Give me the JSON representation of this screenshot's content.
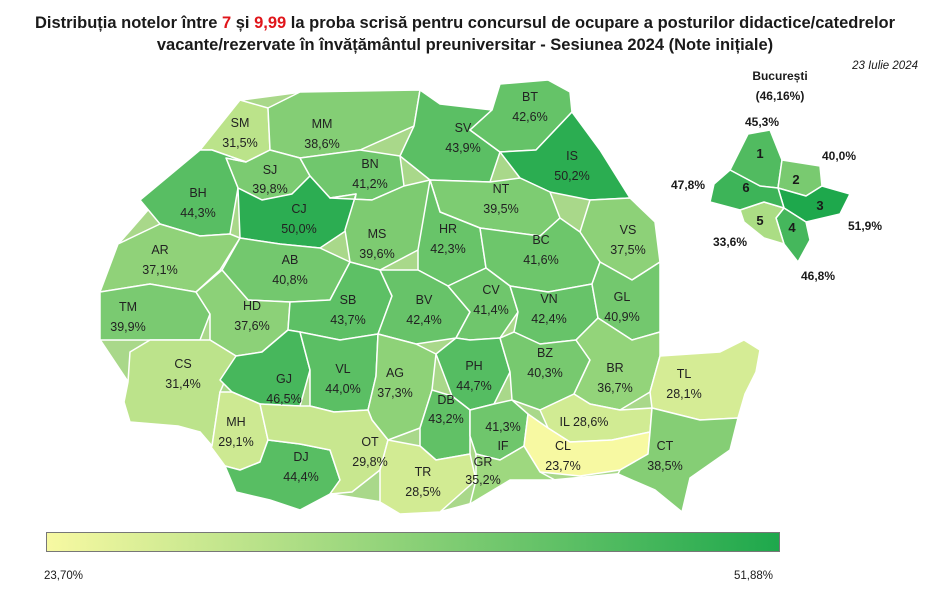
{
  "title": {
    "part1": "Distribuția notelor între ",
    "num1": "7",
    "part2": " și ",
    "num2": "9,99",
    "part3": " la proba scrisă pentru concursul de ocupare a posturilor didactice/catedrelor",
    "line2": "vacante/rezervate în învățământul preuniversitar - Sesiunea 2024 (Note inițiale)"
  },
  "date": "23 Iulie 2024",
  "colors": {
    "low": "#f7f9a2",
    "high": "#1ea84c",
    "border": "#ffffff"
  },
  "scale": {
    "min": 23.7,
    "max": 51.88,
    "min_label": "23,70%",
    "max_label": "51,88%"
  },
  "counties": [
    {
      "code": "SM",
      "value": 31.5,
      "label": "31,5%"
    },
    {
      "code": "MM",
      "value": 38.6,
      "label": "38,6%"
    },
    {
      "code": "SV",
      "value": 43.9,
      "label": "43,9%"
    },
    {
      "code": "BT",
      "value": 42.6,
      "label": "42,6%"
    },
    {
      "code": "SJ",
      "value": 39.8,
      "label": "39,8%"
    },
    {
      "code": "BN",
      "value": 41.2,
      "label": "41,2%"
    },
    {
      "code": "IS",
      "value": 50.2,
      "label": "50,2%"
    },
    {
      "code": "BH",
      "value": 44.3,
      "label": "44,3%"
    },
    {
      "code": "CJ",
      "value": 50.0,
      "label": "50,0%"
    },
    {
      "code": "NT",
      "value": 39.5,
      "label": "39,5%"
    },
    {
      "code": "MS",
      "value": 39.6,
      "label": "39,6%"
    },
    {
      "code": "HR",
      "value": 42.3,
      "label": "42,3%"
    },
    {
      "code": "VS",
      "value": 37.5,
      "label": "37,5%"
    },
    {
      "code": "AR",
      "value": 37.1,
      "label": "37,1%"
    },
    {
      "code": "AB",
      "value": 40.8,
      "label": "40,8%"
    },
    {
      "code": "BC",
      "value": 41.6,
      "label": "41,6%"
    },
    {
      "code": "TM",
      "value": 39.9,
      "label": "39,9%"
    },
    {
      "code": "HD",
      "value": 37.6,
      "label": "37,6%"
    },
    {
      "code": "SB",
      "value": 43.7,
      "label": "43,7%"
    },
    {
      "code": "BV",
      "value": 42.4,
      "label": "42,4%"
    },
    {
      "code": "CV",
      "value": 41.4,
      "label": "41,4%"
    },
    {
      "code": "VN",
      "value": 42.4,
      "label": "42,4%"
    },
    {
      "code": "GL",
      "value": 40.9,
      "label": "40,9%"
    },
    {
      "code": "CS",
      "value": 31.4,
      "label": "31,4%"
    },
    {
      "code": "GJ",
      "value": 46.5,
      "label": "46,5%"
    },
    {
      "code": "VL",
      "value": 44.0,
      "label": "44,0%"
    },
    {
      "code": "AG",
      "value": 37.3,
      "label": "37,3%"
    },
    {
      "code": "PH",
      "value": 44.7,
      "label": "44,7%"
    },
    {
      "code": "BZ",
      "value": 40.3,
      "label": "40,3%"
    },
    {
      "code": "BR",
      "value": 36.7,
      "label": "36,7%"
    },
    {
      "code": "TL",
      "value": 28.1,
      "label": "28,1%"
    },
    {
      "code": "MH",
      "value": 29.1,
      "label": "29,1%"
    },
    {
      "code": "DB",
      "value": 43.2,
      "label": "43,2%"
    },
    {
      "code": "IL",
      "value": 28.6,
      "label": "28,6%"
    },
    {
      "code": "IF",
      "value": 41.3,
      "label": "41,3%"
    },
    {
      "code": "CL",
      "value": 23.7,
      "label": "23,7%"
    },
    {
      "code": "DJ",
      "value": 44.4,
      "label": "44,4%"
    },
    {
      "code": "OT",
      "value": 29.8,
      "label": "29,8%"
    },
    {
      "code": "TR",
      "value": 28.5,
      "label": "28,5%"
    },
    {
      "code": "GR",
      "value": 35.2,
      "label": "35,2%"
    },
    {
      "code": "CT",
      "value": 38.5,
      "label": "38,5%"
    }
  ],
  "bucharest": {
    "title": "București",
    "total": "(46,16%)",
    "sectors": [
      {
        "name": "1",
        "value": 45.3,
        "label": "45,3%"
      },
      {
        "name": "2",
        "value": 40.0,
        "label": "40,0%"
      },
      {
        "name": "3",
        "value": 51.9,
        "label": "51,9%"
      },
      {
        "name": "4",
        "value": 46.8,
        "label": "46,8%"
      },
      {
        "name": "5",
        "value": 33.6,
        "label": "33,6%"
      },
      {
        "name": "6",
        "value": 47.8,
        "label": "47,8%"
      }
    ]
  }
}
